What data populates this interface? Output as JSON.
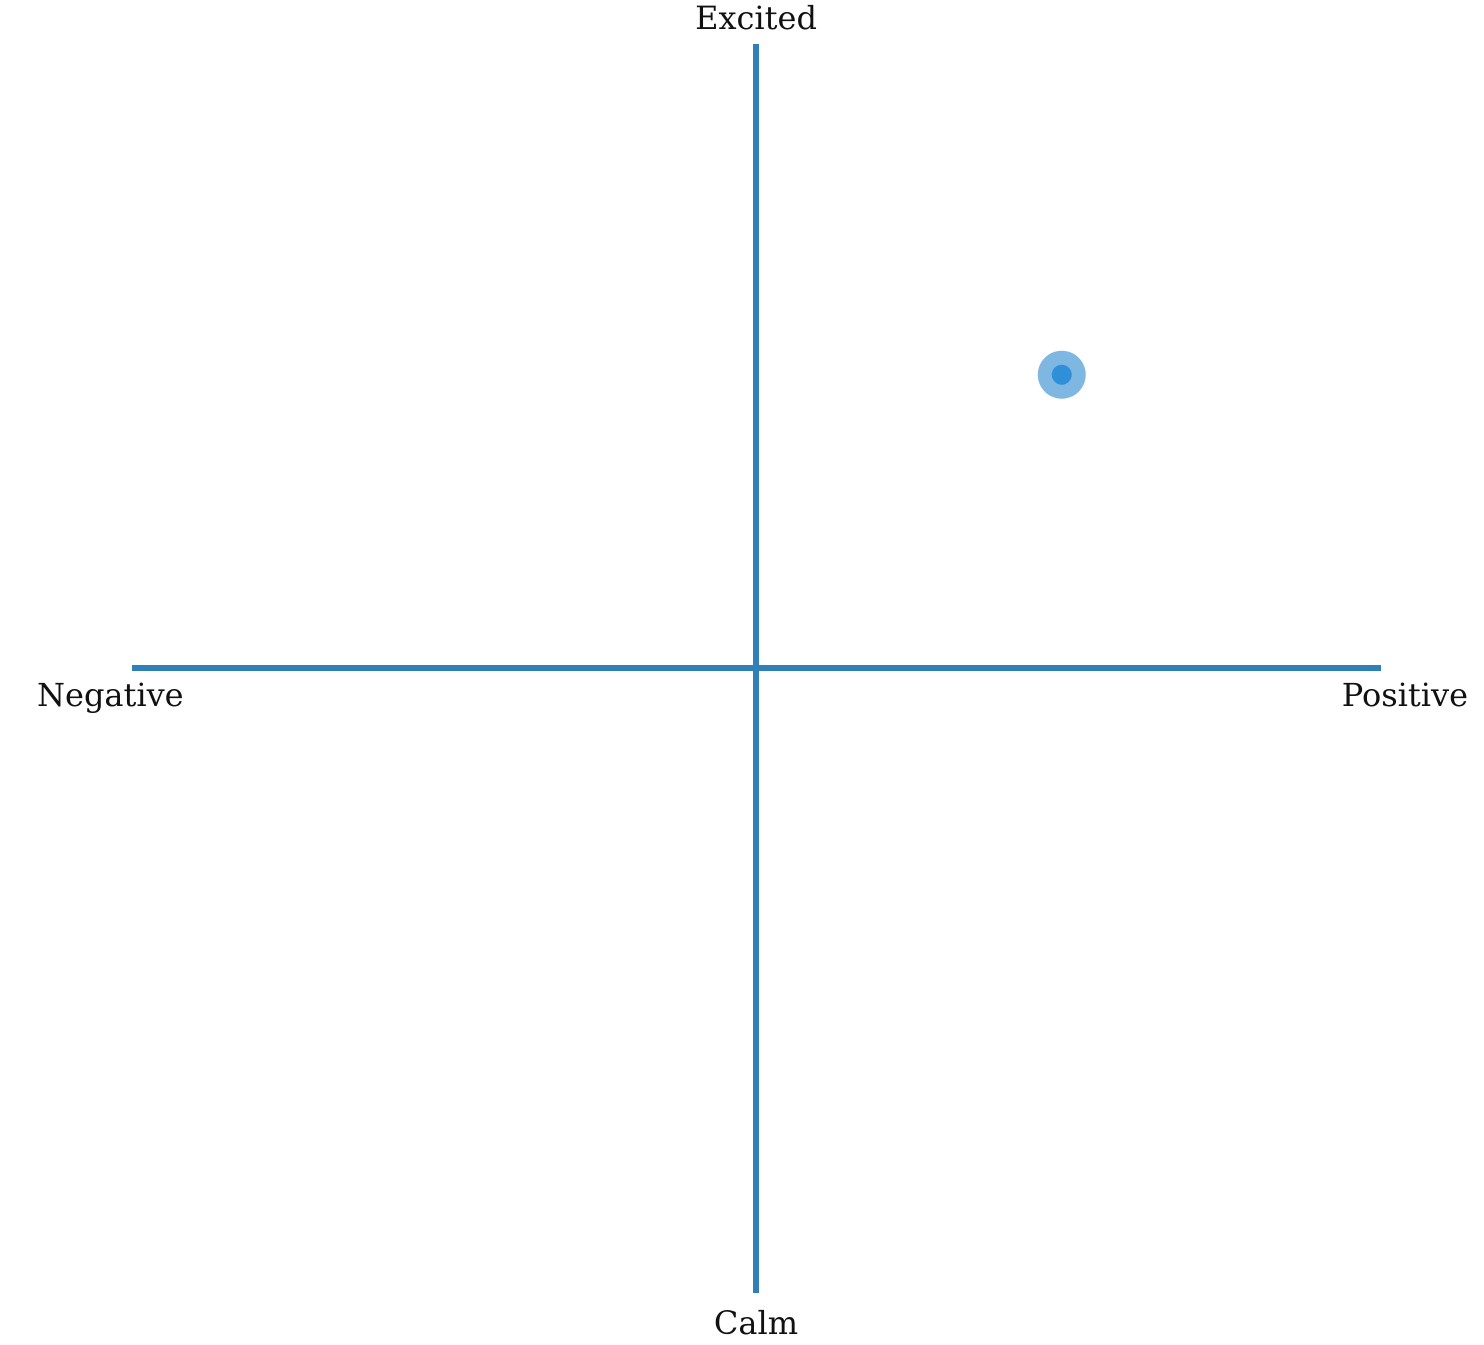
{
  "labels": {
    "top": "Excited",
    "bottom": "Calm",
    "left": "Negative",
    "right": "Positive"
  },
  "selection": {
    "valence": 0.49,
    "arousal": 0.47
  },
  "colors": {
    "axis": "#2f7fb8",
    "marker_halo": "#7fb7e3",
    "marker_core": "#2f8fd8"
  }
}
